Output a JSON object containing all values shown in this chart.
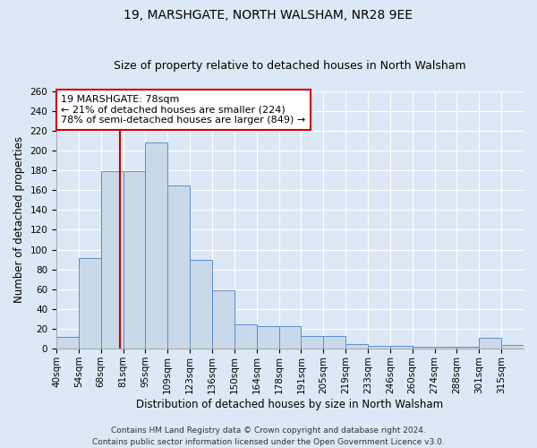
{
  "title1": "19, MARSHGATE, NORTH WALSHAM, NR28 9EE",
  "title2": "Size of property relative to detached houses in North Walsham",
  "xlabel": "Distribution of detached houses by size in North Walsham",
  "ylabel": "Number of detached properties",
  "bin_labels": [
    "40sqm",
    "54sqm",
    "68sqm",
    "81sqm",
    "95sqm",
    "109sqm",
    "123sqm",
    "136sqm",
    "150sqm",
    "164sqm",
    "178sqm",
    "191sqm",
    "205sqm",
    "219sqm",
    "233sqm",
    "246sqm",
    "260sqm",
    "274sqm",
    "288sqm",
    "301sqm",
    "315sqm"
  ],
  "bar_heights": [
    12,
    91,
    179,
    179,
    208,
    165,
    90,
    59,
    25,
    23,
    23,
    13,
    13,
    5,
    3,
    3,
    2,
    2,
    2,
    11,
    4
  ],
  "bar_color": "#c9d9ea",
  "bar_edge_color": "#5b8fc9",
  "property_line_after_bar": 2,
  "annotation_title": "19 MARSHGATE: 78sqm",
  "annotation_line1": "← 21% of detached houses are smaller (224)",
  "annotation_line2": "78% of semi-detached houses are larger (849) →",
  "annotation_box_color": "#ffffff",
  "annotation_box_edge_color": "#cc0000",
  "vline_color": "#cc0000",
  "ylim": [
    0,
    260
  ],
  "yticks": [
    0,
    20,
    40,
    60,
    80,
    100,
    120,
    140,
    160,
    180,
    200,
    220,
    240,
    260
  ],
  "footer1": "Contains HM Land Registry data © Crown copyright and database right 2024.",
  "footer2": "Contains public sector information licensed under the Open Government Licence v3.0.",
  "bg_color": "#dce8f5",
  "plot_bg_color": "#dce8f5",
  "title1_fontsize": 10,
  "title2_fontsize": 9,
  "axis_label_fontsize": 8.5,
  "tick_fontsize": 7.5,
  "annotation_fontsize": 8,
  "footer_fontsize": 6.5
}
